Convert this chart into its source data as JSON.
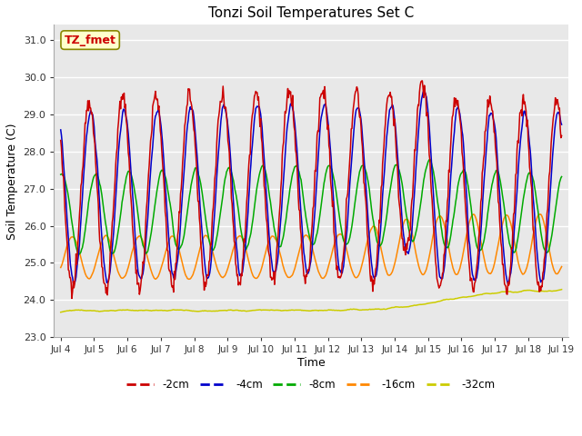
{
  "title": "Tonzi Soil Temperatures Set C",
  "xlabel": "Time",
  "ylabel": "Soil Temperature (C)",
  "ylim": [
    23.0,
    31.4
  ],
  "yticks": [
    23.0,
    24.0,
    25.0,
    26.0,
    27.0,
    28.0,
    29.0,
    30.0,
    31.0
  ],
  "xtick_labels": [
    "Jul 4",
    "Jul 5",
    "Jul 6",
    "Jul 7",
    "Jul 8",
    "Jul 9",
    "Jul 10",
    "Jul 11",
    "Jul 12",
    "Jul 13",
    "Jul 14",
    "Jul 15",
    "Jul 16",
    "Jul 17",
    "Jul 18",
    "Jul 19"
  ],
  "n_points": 720,
  "colors": {
    "-2cm": "#cc0000",
    "-4cm": "#0000cc",
    "-8cm": "#00aa00",
    "-16cm": "#ff8800",
    "-32cm": "#cccc00"
  },
  "legend_labels": [
    "-2cm",
    "-4cm",
    "-8cm",
    "-16cm",
    "-32cm"
  ],
  "annotation_text": "TZ_fmet",
  "annotation_color": "#cc0000",
  "annotation_bg": "#ffffcc",
  "annotation_border": "#888800",
  "plot_bg_color": "#e8e8e8",
  "fig_bg_color": "#ffffff",
  "grid_color": "#ffffff"
}
